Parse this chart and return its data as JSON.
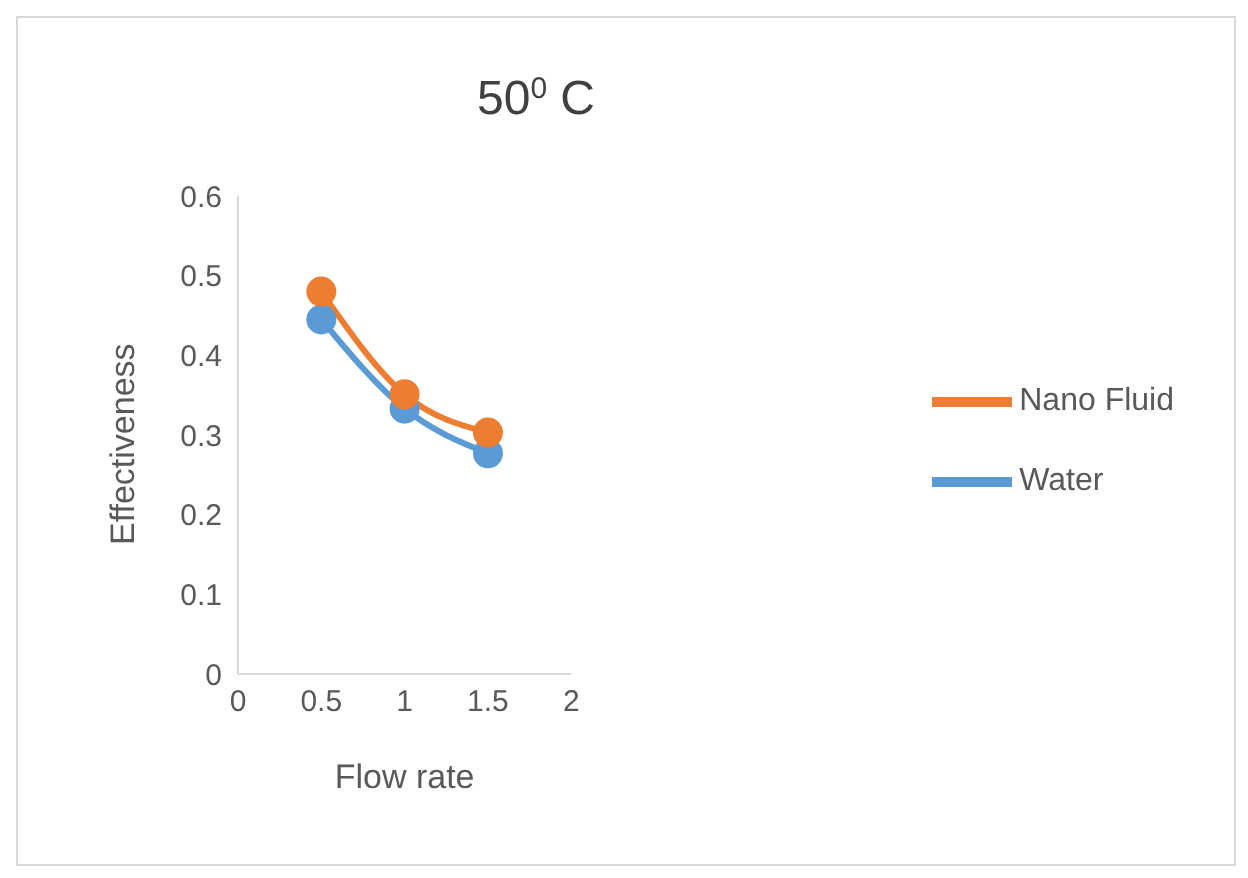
{
  "chart_data": {
    "type": "line",
    "title": "50$^{0}$ C",
    "xlabel": "Flow rate",
    "ylabel": "Effectiveness",
    "x": [
      0.5,
      1,
      1.5
    ],
    "series": [
      {
        "name": "Water",
        "color": "#5b9bd5",
        "values": [
          0.445,
          0.333,
          0.277
        ]
      },
      {
        "name": "Nano Fluid",
        "color": "#ed7d31",
        "values": [
          0.48,
          0.351,
          0.303
        ]
      }
    ],
    "xlim": [
      0,
      2
    ],
    "xticks": [
      0,
      0.5,
      1,
      1.5,
      2
    ],
    "ylim": [
      0,
      0.6
    ],
    "yticks": [
      0,
      0.1,
      0.2,
      0.3,
      0.4,
      0.5,
      0.6
    ],
    "grid": false,
    "legend": "right",
    "marker": "circle",
    "line_style": "solid"
  }
}
